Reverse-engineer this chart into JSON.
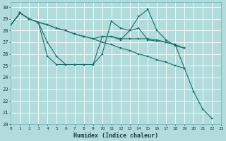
{
  "xlabel": "Humidex (Indice chaleur)",
  "background_color": "#b2dcdc",
  "grid_color": "#c8e8e8",
  "line_color": "#1a6e6a",
  "xlim": [
    0,
    23
  ],
  "ylim": [
    20,
    30.4
  ],
  "xticks": [
    0,
    1,
    2,
    3,
    4,
    5,
    6,
    7,
    8,
    9,
    10,
    11,
    12,
    13,
    14,
    15,
    16,
    17,
    18,
    19,
    20,
    21,
    22,
    23
  ],
  "yticks": [
    20,
    21,
    22,
    23,
    24,
    25,
    26,
    27,
    28,
    29,
    30
  ],
  "lines": [
    [
      28.5,
      29.5,
      29.0,
      28.7,
      27.0,
      25.8,
      25.1,
      25.1,
      25.1,
      25.1,
      27.5,
      27.5,
      27.2,
      28.0,
      28.2,
      27.2,
      27.1,
      27.0,
      26.8,
      24.8,
      22.8,
      21.3,
      20.5,
      null
    ],
    [
      28.5,
      29.5,
      29.0,
      28.7,
      25.8,
      25.1,
      25.1,
      25.1,
      25.1,
      25.1,
      26.0,
      28.8,
      28.2,
      28.0,
      29.2,
      29.8,
      28.0,
      27.2,
      26.7,
      26.5,
      null,
      null,
      null,
      null
    ],
    [
      28.5,
      29.5,
      29.0,
      28.7,
      28.5,
      28.2,
      28.0,
      27.7,
      27.5,
      27.3,
      27.5,
      27.5,
      27.3,
      27.3,
      27.3,
      27.3,
      27.2,
      27.0,
      26.8,
      26.5,
      null,
      null,
      null,
      null
    ],
    [
      28.5,
      29.5,
      29.0,
      28.7,
      28.5,
      28.2,
      28.0,
      27.7,
      27.5,
      27.3,
      27.0,
      26.8,
      26.5,
      26.3,
      26.0,
      25.8,
      25.5,
      25.3,
      25.0,
      24.8,
      null,
      null,
      null,
      null
    ]
  ]
}
